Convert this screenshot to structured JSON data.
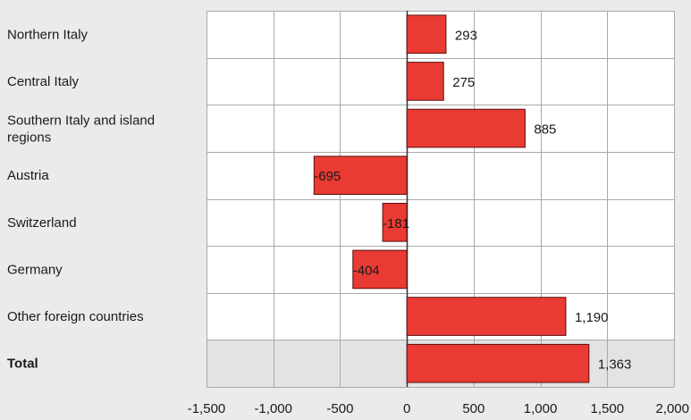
{
  "chart_data": {
    "type": "bar",
    "orientation": "horizontal",
    "categories": [
      "Northern Italy",
      "Central Italy",
      "Southern Italy and island regions",
      "Austria",
      "Switzerland",
      "Germany",
      "Other foreign countries",
      "Total"
    ],
    "values": [
      293,
      275,
      885,
      -695,
      -181,
      -404,
      1190,
      1363
    ],
    "value_labels": [
      "293",
      "275",
      "885",
      "-695",
      "-181",
      "-404",
      "1,190",
      "1,363"
    ],
    "bold_categories": [
      "Total"
    ],
    "highlighted_rows": [
      "Total"
    ],
    "xlim": [
      -1500,
      2000
    ],
    "xticks": [
      -1500,
      -1000,
      -500,
      0,
      500,
      1000,
      1500,
      2000
    ],
    "xtick_labels": [
      "-1,500",
      "-1,000",
      "-500",
      "0",
      "500",
      "1,000",
      "1,500",
      "2,000"
    ],
    "grid": true,
    "title": "",
    "xlabel": "",
    "ylabel": "",
    "colors": {
      "bar": "#e93a33",
      "bar_stroke": "#5a1010",
      "plot_background": "#ffffff",
      "highlight_row": "#e3e3e4",
      "gridline": "#a9a9a9",
      "page_background": "#ebebec"
    }
  }
}
